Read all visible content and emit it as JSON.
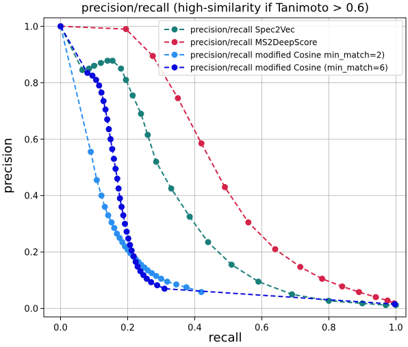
{
  "chart_data": {
    "type": "line",
    "title": "precision/recall (high-similarity if Tanimoto > 0.6)",
    "xlabel": "recall",
    "ylabel": "precision",
    "xlim": [
      -0.05,
      1.03
    ],
    "ylim": [
      -0.03,
      1.03
    ],
    "xticks": [
      "0.0",
      "0.2",
      "0.4",
      "0.6",
      "0.8",
      "1.0"
    ],
    "yticks": [
      "0.0",
      "0.2",
      "0.4",
      "0.6",
      "0.8",
      "1.0"
    ],
    "grid": true,
    "legend_position": "top-right",
    "series": [
      {
        "name": "precision/recall Spec2Vec",
        "color": "#1a7f7a",
        "x": [
          0.0,
          0.065,
          0.085,
          0.1,
          0.12,
          0.14,
          0.155,
          0.18,
          0.195,
          0.215,
          0.24,
          0.26,
          0.285,
          0.33,
          0.385,
          0.44,
          0.51,
          0.59,
          0.69,
          0.8,
          0.9,
          0.97,
          1.0
        ],
        "y": [
          1.0,
          0.845,
          0.85,
          0.86,
          0.87,
          0.878,
          0.878,
          0.85,
          0.81,
          0.755,
          0.69,
          0.615,
          0.52,
          0.425,
          0.325,
          0.235,
          0.155,
          0.095,
          0.05,
          0.027,
          0.018,
          0.012,
          0.012
        ]
      },
      {
        "name": "precision/recall MS2DeepScore",
        "color": "#d6234a",
        "x": [
          0.0,
          0.195,
          0.275,
          0.35,
          0.42,
          0.49,
          0.56,
          0.64,
          0.715,
          0.78,
          0.84,
          0.89,
          0.94,
          0.975,
          0.995
        ],
        "y": [
          1.0,
          0.99,
          0.895,
          0.745,
          0.585,
          0.43,
          0.305,
          0.21,
          0.147,
          0.105,
          0.078,
          0.058,
          0.04,
          0.028,
          0.018
        ]
      },
      {
        "name": "precision/recall modified Cosine min_match=2)",
        "color": "#2b8ff0",
        "x": [
          0.0,
          0.09,
          0.108,
          0.122,
          0.132,
          0.142,
          0.152,
          0.16,
          0.168,
          0.176,
          0.184,
          0.192,
          0.2,
          0.208,
          0.216,
          0.224,
          0.232,
          0.24,
          0.25,
          0.26,
          0.272,
          0.285,
          0.3,
          0.318,
          0.345,
          0.375,
          0.42
        ],
        "y": [
          1.0,
          0.555,
          0.455,
          0.4,
          0.36,
          0.33,
          0.305,
          0.285,
          0.265,
          0.25,
          0.235,
          0.22,
          0.208,
          0.196,
          0.185,
          0.175,
          0.165,
          0.155,
          0.145,
          0.135,
          0.125,
          0.115,
          0.105,
          0.095,
          0.085,
          0.075,
          0.058
        ]
      },
      {
        "name": "precision/recall modified Cosine (min_match=6)",
        "color": "#0a0adc",
        "x": [
          0.0,
          0.08,
          0.095,
          0.106,
          0.115,
          0.122,
          0.128,
          0.134,
          0.139,
          0.144,
          0.149,
          0.154,
          0.159,
          0.164,
          0.169,
          0.173,
          0.177,
          0.182,
          0.187,
          0.192,
          0.197,
          0.202,
          0.207,
          0.212,
          0.218,
          0.224,
          0.23,
          0.238,
          0.247,
          0.257,
          0.27,
          0.288,
          0.31,
          0.997
        ],
        "y": [
          1.0,
          0.835,
          0.825,
          0.81,
          0.79,
          0.765,
          0.735,
          0.705,
          0.67,
          0.635,
          0.6,
          0.565,
          0.53,
          0.495,
          0.46,
          0.425,
          0.39,
          0.36,
          0.33,
          0.3,
          0.272,
          0.248,
          0.225,
          0.205,
          0.185,
          0.165,
          0.148,
          0.132,
          0.118,
          0.105,
          0.093,
          0.082,
          0.07,
          0.015
        ]
      }
    ]
  }
}
